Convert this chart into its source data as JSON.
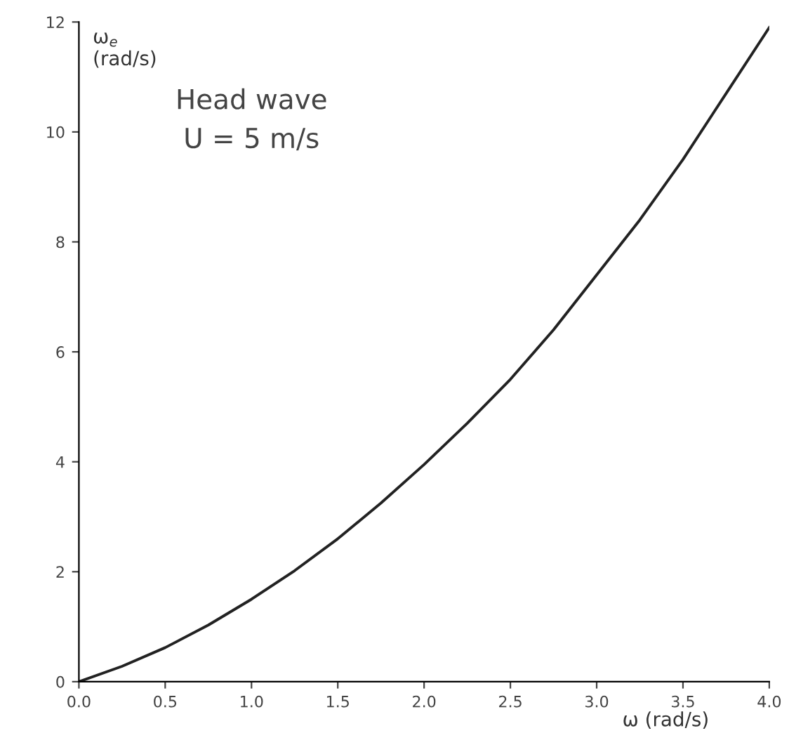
{
  "chart_data": {
    "type": "line",
    "xlabel": "ω (rad/s)",
    "ylabel": "ω$_{e}$\n(rad/s)",
    "annotations": [
      "Head wave\nU = 5 m/s"
    ],
    "x": [
      0,
      0.25,
      0.5,
      0.75,
      1.0,
      1.25,
      1.5,
      1.75,
      2.0,
      2.25,
      2.5,
      2.75,
      3.0,
      3.25,
      3.5,
      3.75,
      4.0
    ],
    "series": [
      {
        "color": "#222222",
        "values": [
          0,
          0.28,
          0.62,
          1.03,
          1.5,
          2.02,
          2.6,
          3.25,
          3.95,
          4.7,
          5.5,
          6.4,
          7.4,
          8.4,
          9.5,
          10.7,
          11.9
        ]
      }
    ],
    "xlim": [
      0,
      4
    ],
    "ylim": [
      0,
      12
    ],
    "xticks": [
      {
        "value": 0,
        "label": "0.0"
      },
      0.5,
      {
        "value": 1,
        "label": "1.0"
      },
      1.5,
      {
        "value": 2,
        "label": "2.0"
      },
      2.5,
      {
        "value": 3,
        "label": "3.0"
      },
      3.5,
      {
        "value": 4,
        "label": "4.0"
      }
    ],
    "yticks": [
      0,
      2,
      4,
      6,
      8,
      10,
      12
    ],
    "grid": false,
    "marker": "none",
    "line_style": "solid"
  }
}
